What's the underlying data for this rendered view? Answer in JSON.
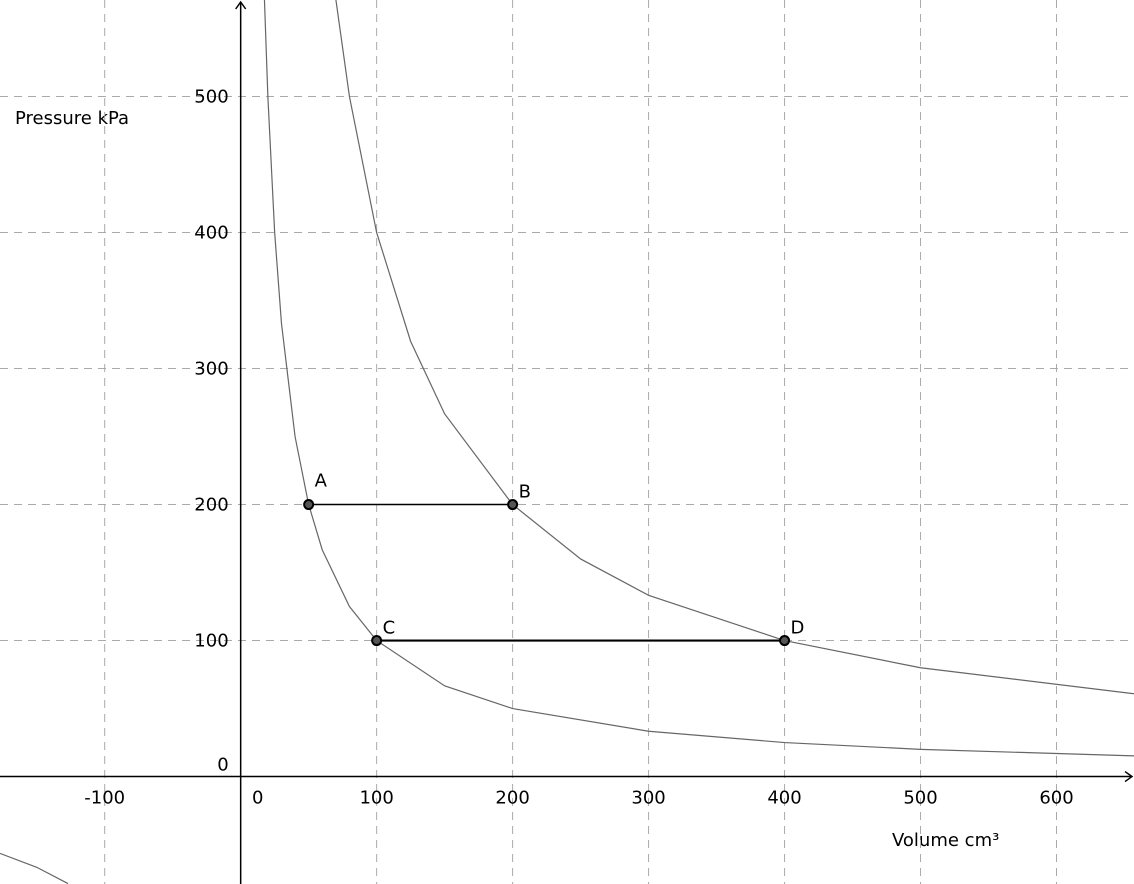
{
  "chart_data": {
    "type": "line",
    "xlabel": "Volume cm³",
    "ylabel": "Pressure kPa",
    "xlim": [
      -177,
      657
    ],
    "ylim": [
      -79,
      571
    ],
    "xticks": [
      -100,
      0,
      100,
      200,
      300,
      400,
      500,
      600
    ],
    "yticks": [
      0,
      100,
      200,
      300,
      400,
      500
    ],
    "grid": true,
    "color": "#666666",
    "curves": [
      {
        "x": [
          -177,
          -150,
          -127,
          0,
          17.5,
          20,
          25,
          30,
          40,
          50,
          60,
          80,
          100,
          150,
          200,
          300,
          400,
          500,
          657
        ],
        "values": [
          -56.5,
          -66.7,
          -78.7,
          null,
          571,
          500,
          400,
          333.3,
          250,
          200,
          166.7,
          125,
          100,
          66.7,
          50,
          33.3,
          25,
          20,
          15.2
        ]
      },
      {
        "x": [
          70,
          80,
          100,
          125,
          150,
          200,
          250,
          300,
          400,
          500,
          657
        ],
        "values": [
          571.4,
          500,
          400,
          320,
          266.7,
          200,
          160,
          133.3,
          100,
          80,
          60.9
        ]
      }
    ],
    "points": [
      {
        "label": "A",
        "x": 50,
        "y": 200
      },
      {
        "label": "B",
        "x": 200,
        "y": 200
      },
      {
        "label": "C",
        "x": 100,
        "y": 100
      },
      {
        "label": "D",
        "x": 400,
        "y": 100
      }
    ]
  }
}
